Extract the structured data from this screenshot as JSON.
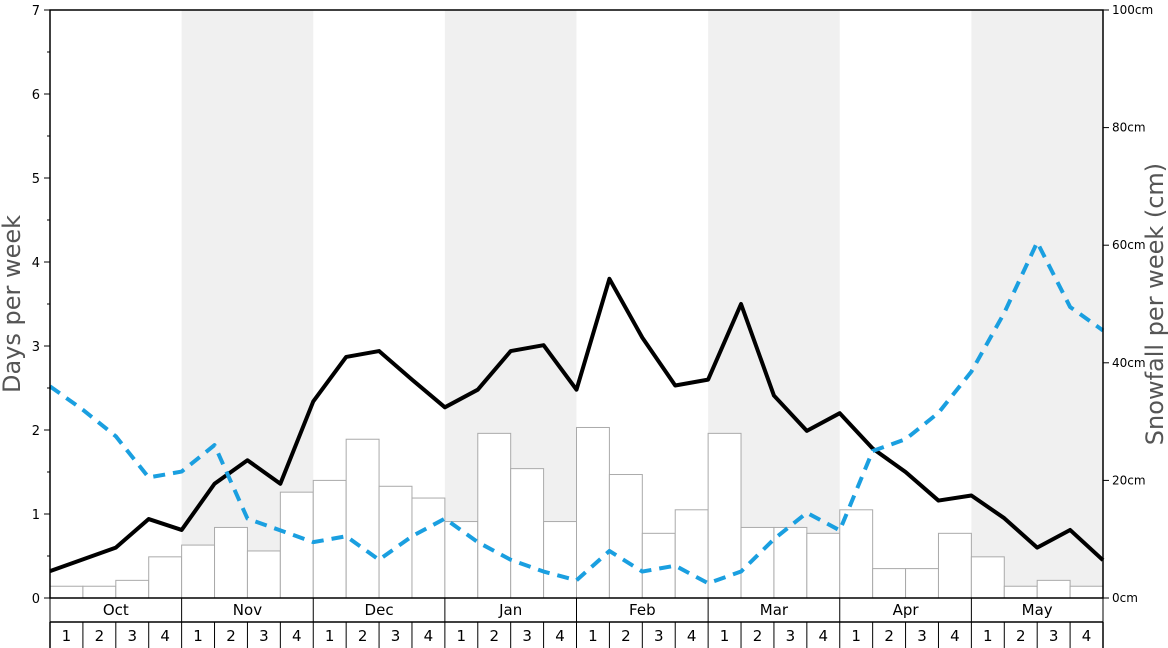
{
  "chart_data": {
    "type": "bar",
    "title": "",
    "ylabel_left": "Days per week",
    "ylabel_right": "Snowfall per week (cm)",
    "ylim_left": [
      0,
      7
    ],
    "ylim_right": [
      0,
      100
    ],
    "left_ticks": [
      "0",
      "1",
      "2",
      "3",
      "4",
      "5",
      "6",
      "7"
    ],
    "right_ticks": [
      "0cm",
      "20cm",
      "40cm",
      "60cm",
      "80cm",
      "100cm"
    ],
    "months": [
      "Oct",
      "Nov",
      "Dec",
      "Jan",
      "Feb",
      "Mar",
      "Apr",
      "May"
    ],
    "weeks": [
      "1",
      "2",
      "3",
      "4"
    ],
    "shaded_months": [
      "Nov",
      "Jan",
      "Mar",
      "May"
    ],
    "colors": {
      "bars_fill": "#ffffff",
      "bars_stroke": "#aaaaaa",
      "line_solid": "#000000",
      "line_dashed": "#1a9fe0",
      "shade": "#f0f0f0"
    },
    "series": [
      {
        "type": "bar",
        "axis": "right",
        "values": [
          2,
          2,
          3,
          7,
          9,
          12,
          8,
          18,
          20,
          27,
          19,
          17,
          13,
          28,
          22,
          13,
          29,
          21,
          11,
          15,
          28,
          12,
          12,
          11,
          15,
          5,
          5,
          11,
          7,
          2,
          3,
          2
        ]
      },
      {
        "type": "line",
        "axis": "left",
        "style": "solid",
        "values": [
          0.32,
          0.46,
          0.6,
          0.94,
          0.81,
          1.36,
          1.64,
          1.36,
          2.34,
          2.87,
          2.94,
          2.6,
          2.27,
          2.48,
          2.94,
          3.01,
          2.48,
          3.8,
          3.1,
          2.53,
          2.6,
          3.5,
          2.41,
          1.99,
          2.2,
          1.78,
          1.5,
          1.16,
          1.22,
          0.95,
          0.6,
          0.81,
          0.45
        ]
      },
      {
        "type": "line",
        "axis": "right",
        "style": "dashed",
        "values": [
          36,
          32,
          27.5,
          20.5,
          21.5,
          26,
          13.5,
          11.5,
          9.5,
          10.5,
          6.5,
          10.5,
          13.5,
          9.5,
          6.5,
          4.5,
          3,
          8,
          4.5,
          5.5,
          2.5,
          4.5,
          10,
          14.5,
          11.5,
          25,
          27,
          31.5,
          38.5,
          48.5,
          60.5,
          49.5,
          45.5
        ]
      }
    ]
  }
}
